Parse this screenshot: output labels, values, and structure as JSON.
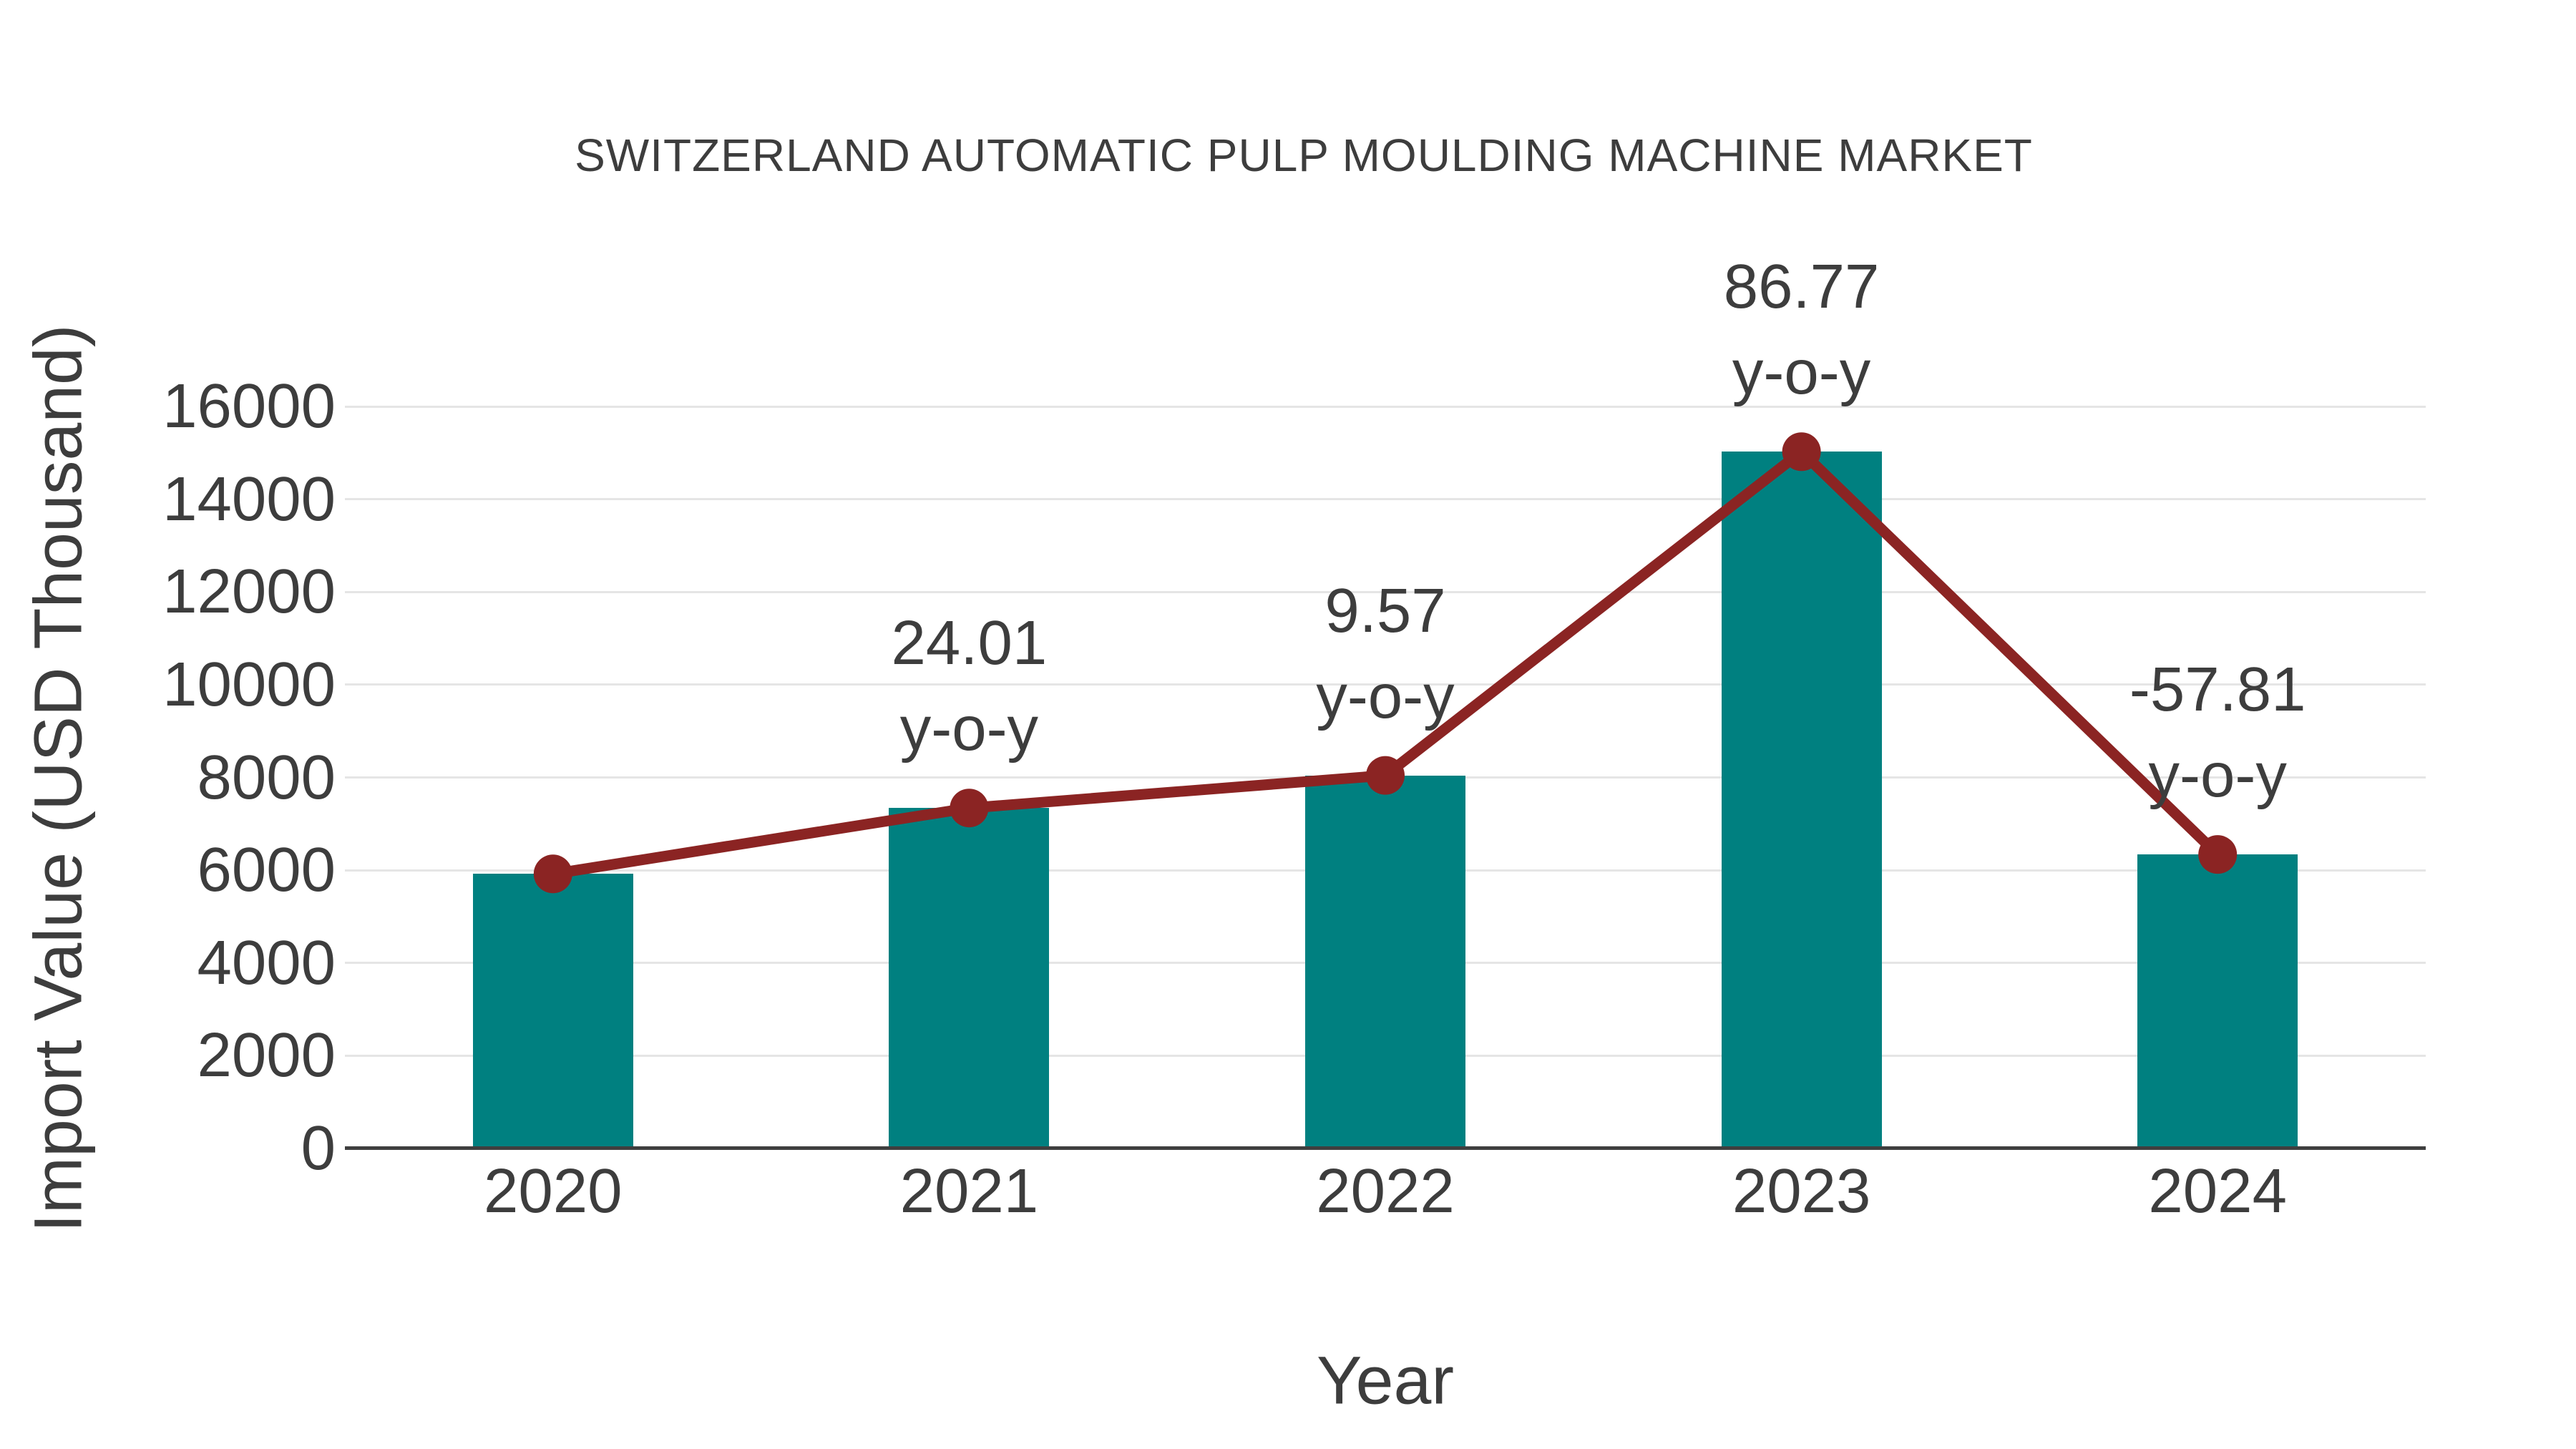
{
  "chart_data": {
    "type": "bar",
    "title": "SWITZERLAND AUTOMATIC PULP MOULDING MACHINE MARKET",
    "xlabel": "Year",
    "ylabel": "Import Value (USD Thousand)",
    "categories": [
      "2020",
      "2021",
      "2022",
      "2023",
      "2024"
    ],
    "series": [
      {
        "name": "Import Value (USD Thousand)",
        "type": "bar",
        "values": [
          5920,
          7341,
          8044,
          15024,
          6339
        ]
      },
      {
        "name": "y-o-y growth (%)",
        "type": "line",
        "plotted_on": "bar_tops",
        "values": [
          null,
          24.01,
          9.57,
          86.77,
          -57.81
        ]
      }
    ],
    "annotations": [
      {
        "category": "2021",
        "line1": "24.01",
        "line2": "y-o-y"
      },
      {
        "category": "2022",
        "line1": "9.57",
        "line2": "y-o-y"
      },
      {
        "category": "2023",
        "line1": "86.77",
        "line2": "y-o-y"
      },
      {
        "category": "2024",
        "line1": "-57.81",
        "line2": "y-o-y"
      }
    ],
    "ylim": [
      0,
      16000
    ],
    "yticks": [
      0,
      2000,
      4000,
      6000,
      8000,
      10000,
      12000,
      14000,
      16000
    ],
    "grid": true,
    "legend_position": "none",
    "colors": {
      "bar": "#008080",
      "line": "#8B2423",
      "text": "#3D3D3D",
      "grid": "#E5E5E5",
      "axis": "#3F3F3F",
      "background": "#FFFFFF"
    }
  }
}
